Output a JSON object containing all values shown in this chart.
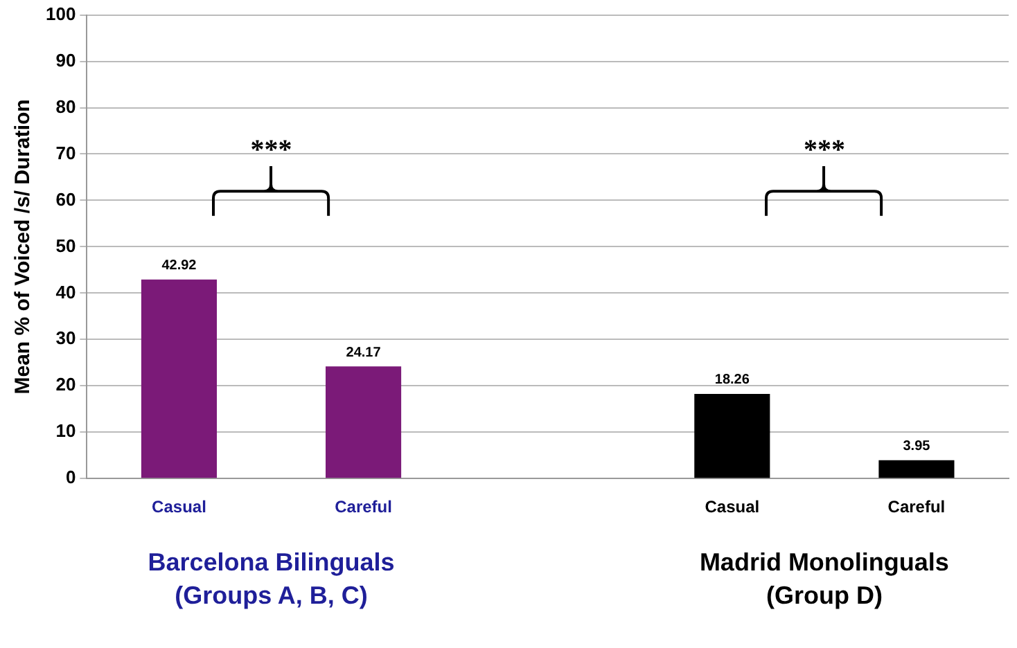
{
  "chart_data": {
    "type": "bar",
    "ylabel": "Mean % of Voiced /s/ Duration",
    "categories": [
      "Casual",
      "Careful",
      null,
      "Casual",
      "Careful"
    ],
    "values": [
      42.92,
      24.17,
      null,
      18.26,
      3.95
    ],
    "colors": [
      "#7b1a78",
      "#7b1a78",
      "#000000",
      "#000000",
      "#000000"
    ],
    "ylim": [
      0,
      100
    ],
    "yticks": [
      0,
      10,
      20,
      30,
      40,
      50,
      60,
      70,
      80,
      90,
      100
    ],
    "grid": "y",
    "legend": false,
    "data_labels": true,
    "annotations": [
      "***",
      "***",
      "Barcelona Bilinguals\n(Groups A, B, C)",
      "Madrid Monolinguals\n(Group D)"
    ]
  }
}
